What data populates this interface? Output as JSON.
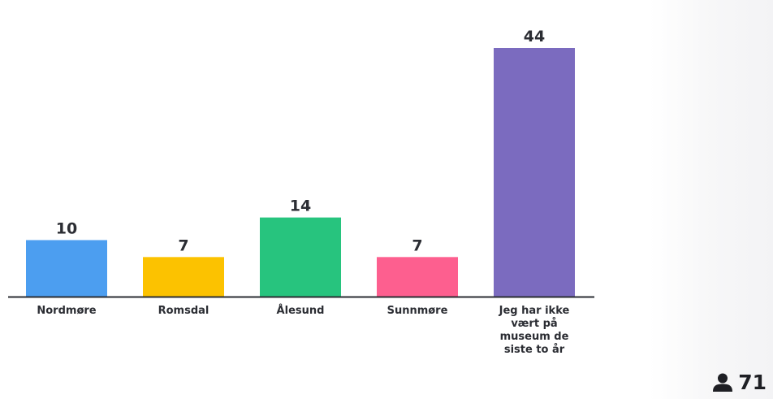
{
  "chart_data": {
    "type": "bar",
    "categories": [
      "Nordmøre",
      "Romsdal",
      "Ålesund",
      "Sunnmøre",
      "Jeg har ikke vært på museum de siste to år"
    ],
    "category_lines": [
      [
        "Nordmøre"
      ],
      [
        "Romsdal"
      ],
      [
        "Ålesund"
      ],
      [
        "Sunnmøre"
      ],
      [
        "Jeg har ikke",
        "vært på",
        "museum de",
        "siste to år"
      ]
    ],
    "values": [
      10,
      7,
      14,
      7,
      44
    ],
    "colors": [
      "#4c9ef0",
      "#fcc200",
      "#27c47e",
      "#fd5f8f",
      "#7b6bbf"
    ],
    "title": "",
    "xlabel": "",
    "ylabel": "",
    "ylim": [
      0,
      44
    ],
    "grid": false,
    "legend": "none"
  },
  "participants": {
    "icon": "user-icon",
    "count": "71"
  }
}
